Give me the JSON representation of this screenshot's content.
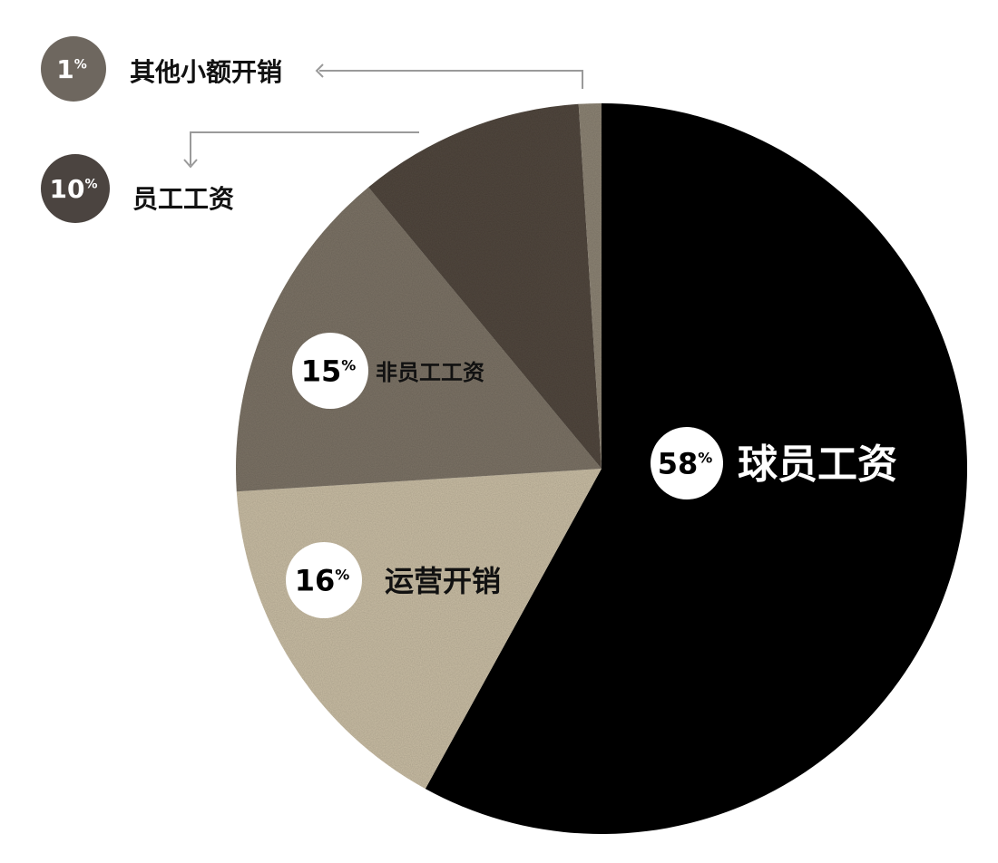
{
  "chart_data": {
    "type": "pie",
    "slices": [
      {
        "label": "球员工资",
        "pct_text": "58",
        "value": 58,
        "color": "#000000",
        "text_color": "#ffffff"
      },
      {
        "label": "运营开销",
        "pct_text": "16",
        "value": 16,
        "color": "#cbbfa6",
        "text_color": "#111111"
      },
      {
        "label": "非员工工资",
        "pct_text": "15",
        "value": 15,
        "color": "#7e7567",
        "text_color": "#111111"
      },
      {
        "label": "员工工资",
        "pct_text": "10",
        "value": 10,
        "color": "#524a40",
        "text_color": "#111111"
      },
      {
        "label": "其他小额开销",
        "pct_text": "1",
        "value": 1,
        "color": "#8e8576",
        "text_color": "#111111"
      }
    ],
    "percent_sign": "%",
    "legend_badge_colors": {
      "other": "#6e675f",
      "staff": "#4b4440"
    }
  }
}
